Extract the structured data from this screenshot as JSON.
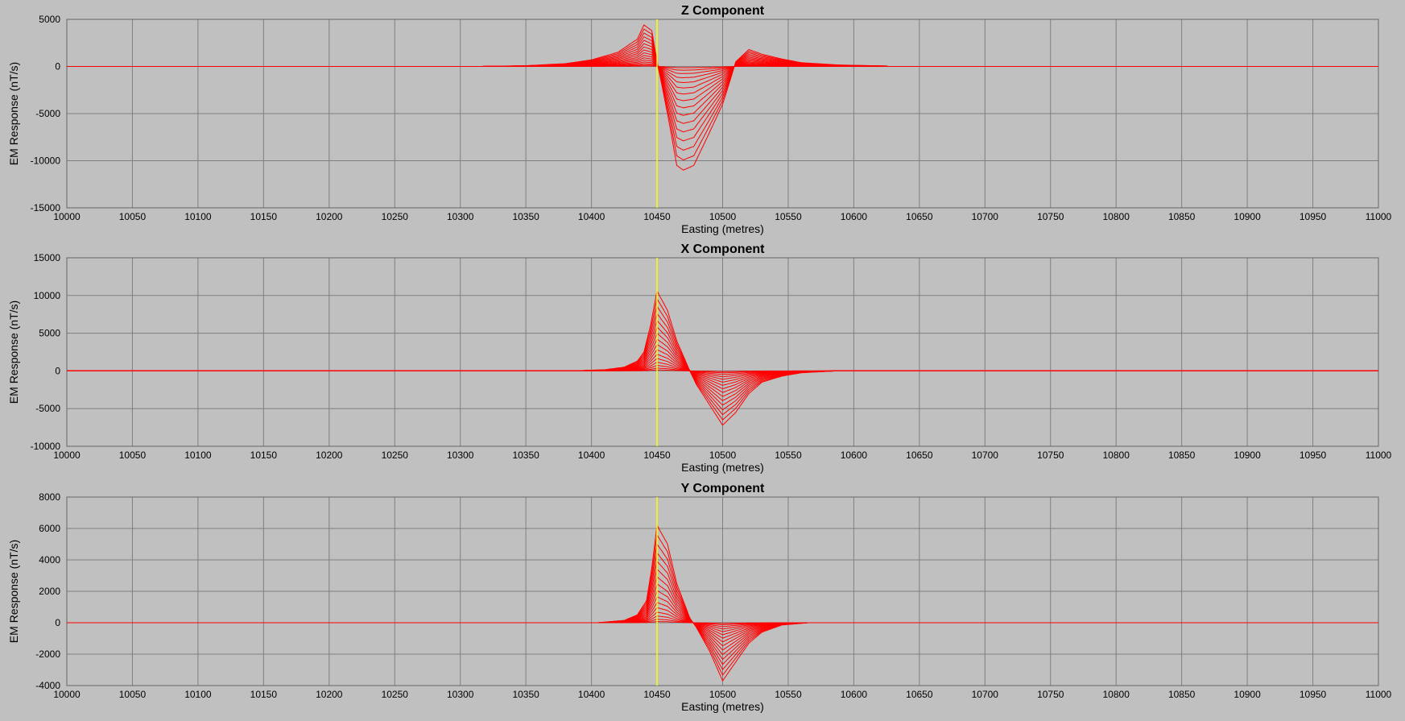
{
  "chart_data": [
    {
      "type": "line",
      "title": "Z Component",
      "xlabel": "Easting (metres)",
      "ylabel": "EM Response (nT/s)",
      "xlim": [
        10000,
        11000
      ],
      "ylim": [
        -15000,
        5000
      ],
      "xticks": [
        10000,
        10050,
        10100,
        10150,
        10200,
        10250,
        10300,
        10350,
        10400,
        10450,
        10500,
        10550,
        10600,
        10650,
        10700,
        10750,
        10800,
        10850,
        10900,
        10950,
        11000
      ],
      "yticks": [
        5000,
        0,
        -5000,
        -10000,
        -15000
      ],
      "grid": true,
      "marker_x": 10450,
      "series_count": 16,
      "series_envelope": {
        "x": [
          10000,
          10315,
          10350,
          10380,
          10400,
          10420,
          10435,
          10440,
          10443,
          10446,
          10450,
          10453,
          10460,
          10465,
          10470,
          10478,
          10490,
          10500,
          10505,
          10510,
          10520,
          10530,
          10545,
          10560,
          10590,
          10625,
          10626,
          11000
        ],
        "y": [
          0,
          0,
          80,
          300,
          700,
          1500,
          2900,
          4400,
          4100,
          3800,
          500,
          -1500,
          -6500,
          -10500,
          -11000,
          -10500,
          -7000,
          -4000,
          -1800,
          500,
          1800,
          1300,
          800,
          400,
          150,
          50,
          0,
          0
        ]
      }
    },
    {
      "type": "line",
      "title": "X Component",
      "xlabel": "Easting (metres)",
      "ylabel": "EM Response (nT/s)",
      "xlim": [
        10000,
        11000
      ],
      "ylim": [
        -10000,
        15000
      ],
      "xticks": [
        10000,
        10050,
        10100,
        10150,
        10200,
        10250,
        10300,
        10350,
        10400,
        10450,
        10500,
        10550,
        10600,
        10650,
        10700,
        10750,
        10800,
        10850,
        10900,
        10950,
        11000
      ],
      "yticks": [
        15000,
        10000,
        5000,
        0,
        -5000,
        -10000
      ],
      "grid": true,
      "marker_x": 10450,
      "series_count": 16,
      "series_envelope": {
        "x": [
          10000,
          10385,
          10410,
          10425,
          10435,
          10440,
          10445,
          10450,
          10458,
          10465,
          10475,
          10480,
          10490,
          10500,
          10510,
          10520,
          10530,
          10545,
          10560,
          10586,
          11000
        ],
        "y": [
          0,
          0,
          150,
          500,
          1300,
          2500,
          6000,
          10600,
          8000,
          4000,
          0,
          -1800,
          -4500,
          -7200,
          -5500,
          -3000,
          -1500,
          -700,
          -250,
          0,
          0
        ]
      }
    },
    {
      "type": "line",
      "title": "Y Component",
      "xlabel": "Easting (metres)",
      "ylabel": "EM Response (nT/s)",
      "xlim": [
        10000,
        11000
      ],
      "ylim": [
        -4000,
        8000
      ],
      "xticks": [
        10000,
        10050,
        10100,
        10150,
        10200,
        10250,
        10300,
        10350,
        10400,
        10450,
        10500,
        10550,
        10600,
        10650,
        10700,
        10750,
        10800,
        10850,
        10900,
        10950,
        11000
      ],
      "yticks": [
        8000,
        6000,
        4000,
        2000,
        0,
        -2000,
        -4000
      ],
      "grid": true,
      "marker_x": 10450,
      "series_count": 16,
      "series_envelope": {
        "x": [
          10000,
          10405,
          10425,
          10435,
          10442,
          10446,
          10450,
          10458,
          10465,
          10475,
          10480,
          10490,
          10500,
          10510,
          10520,
          10530,
          10545,
          10565,
          11000
        ],
        "y": [
          0,
          0,
          150,
          500,
          1400,
          3500,
          6200,
          5000,
          2500,
          300,
          -300,
          -1800,
          -3700,
          -2500,
          -1300,
          -600,
          -150,
          0,
          0
        ]
      }
    }
  ]
}
